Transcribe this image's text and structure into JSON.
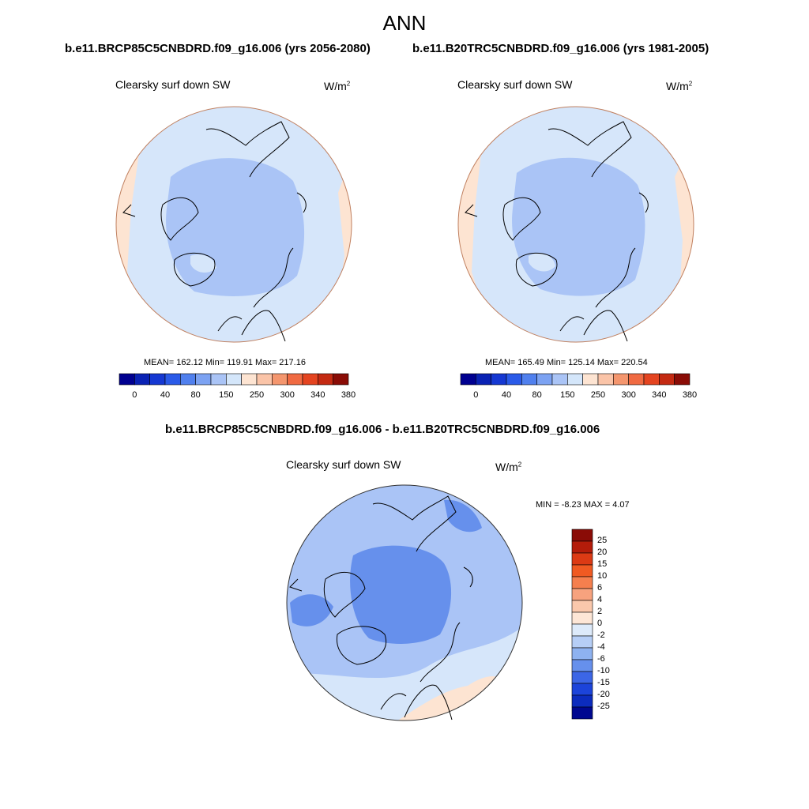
{
  "main_title": "ANN",
  "panels": [
    {
      "case_title": "b.e11.BRCP85C5CNBDRD.f09_g16.006 (yrs 2056-2080)",
      "variable": "Clearsky surf down SW",
      "units_base": "W/m",
      "units_exp": "2",
      "stats": "MEAN= 162.12  Min= 119.91  Max= 217.16",
      "mean": 162.12,
      "min": 119.91,
      "max": 217.16
    },
    {
      "case_title": "b.e11.B20TRC5CNBDRD.f09_g16.006 (yrs 1981-2005)",
      "variable": "Clearsky surf down SW",
      "units_base": "W/m",
      "units_exp": "2",
      "stats": "MEAN= 165.49  Min= 125.14  Max= 220.54",
      "mean": 165.49,
      "min": 125.14,
      "max": 220.54
    }
  ],
  "abs_colorbar": {
    "colors": [
      "#000090",
      "#0a22b4",
      "#1538d2",
      "#2a5ae8",
      "#5080ee",
      "#7ca2f2",
      "#aac4f6",
      "#d4e6fa",
      "#fde4d2",
      "#fac4a8",
      "#f4966e",
      "#f06a42",
      "#e44420",
      "#c42a12",
      "#8a0c06"
    ],
    "tick_labels": [
      "0",
      "40",
      "80",
      "150",
      "250",
      "300",
      "340",
      "380"
    ]
  },
  "diff_panel": {
    "title": "b.e11.BRCP85C5CNBDRD.f09_g16.006 - b.e11.B20TRC5CNBDRD.f09_g16.006",
    "variable": "Clearsky surf down SW",
    "units_base": "W/m",
    "units_exp": "2",
    "minmax": "MIN =  -8.23 MAX =   4.07",
    "min": -8.23,
    "max": 4.07
  },
  "diff_colorbar": {
    "colors": [
      "#8a0c06",
      "#b41c0a",
      "#dc3a14",
      "#f05a22",
      "#f57f4e",
      "#f7a27e",
      "#fac8ac",
      "#fde6d6",
      "#ddeafa",
      "#b6cef6",
      "#8eb2f0",
      "#6690ec",
      "#3c66e6",
      "#1c44da",
      "#0c2cbe",
      "#000890"
    ],
    "tick_labels": [
      "25",
      "20",
      "15",
      "10",
      "6",
      "4",
      "2",
      "0",
      "-2",
      "-4",
      "-6",
      "-10",
      "-15",
      "-20",
      "-25"
    ]
  },
  "colors": {
    "map_base": "#d6e6fa",
    "map_inner": "#aac4f6",
    "map_warm": "#fde4d2",
    "diff_base": "#aac4f6",
    "diff_dark": "#6690ec",
    "diff_light": "#d6e6fa",
    "diff_warm": "#fde4d2",
    "coast": "#000000",
    "rim": "#c08060"
  }
}
